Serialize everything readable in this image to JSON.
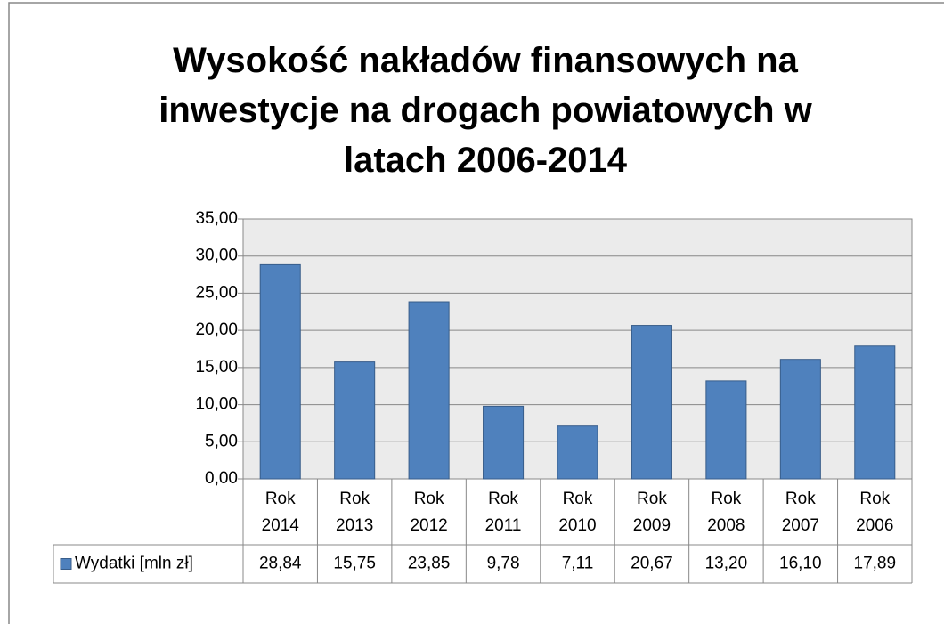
{
  "chart_data": {
    "type": "bar",
    "title": "Wysokość nakładów finansowych na inwestycje na drogach powiatowych w latach 2006-2014",
    "categories": [
      "Rok 2014",
      "Rok 2013",
      "Rok 2012",
      "Rok 2011",
      "Rok 2010",
      "Rok 2009",
      "Rok 2008",
      "Rok 2007",
      "Rok 2006"
    ],
    "series": [
      {
        "name": "Wydatki [mln zł]",
        "color": "#4f81bd",
        "values": [
          28.84,
          15.75,
          23.85,
          9.78,
          7.11,
          20.67,
          13.2,
          16.1,
          17.89
        ],
        "value_labels": [
          "28,84",
          "15,75",
          "23,85",
          "9,78",
          "7,11",
          "20,67",
          "13,20",
          "16,10",
          "17,89"
        ]
      }
    ],
    "ylim": [
      0,
      35
    ],
    "yticks": [
      {
        "value": 0,
        "label": "0,00"
      },
      {
        "value": 5,
        "label": "5,00"
      },
      {
        "value": 10,
        "label": "10,00"
      },
      {
        "value": 15,
        "label": "15,00"
      },
      {
        "value": 20,
        "label": "20,00"
      },
      {
        "value": 25,
        "label": "25,00"
      },
      {
        "value": 30,
        "label": "30,00"
      },
      {
        "value": 35,
        "label": "35,00"
      }
    ],
    "grid": true
  }
}
